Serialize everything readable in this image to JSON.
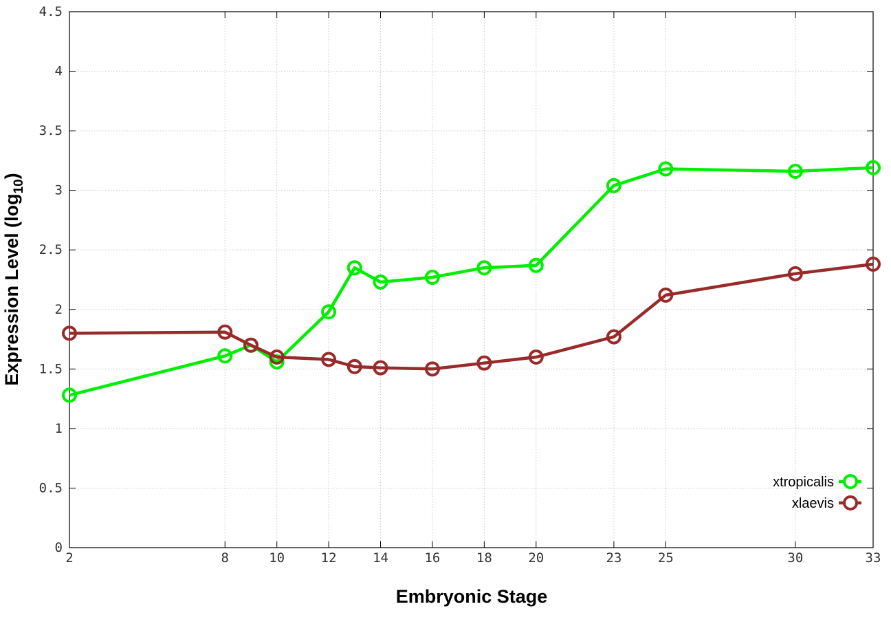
{
  "chart_data": {
    "type": "line",
    "xlabel": "Embryonic Stage",
    "ylabel": "Expression Level (log",
    "ylabel_sub": "10",
    "ylabel_close": ")",
    "x_ticks": [
      2,
      8,
      10,
      12,
      14,
      16,
      18,
      20,
      23,
      25,
      30,
      33
    ],
    "y_ticks": [
      0,
      0.5,
      1,
      1.5,
      2,
      2.5,
      3,
      3.5,
      4,
      4.5
    ],
    "y_tick_labels": [
      "0",
      "0.5",
      "1",
      "1.5",
      "2",
      "2.5",
      "3",
      "3.5",
      "4",
      "4.5"
    ],
    "xlim": [
      2,
      33
    ],
    "ylim": [
      0,
      4.5
    ],
    "grid": true,
    "legend_position": "bottom-right",
    "series": [
      {
        "name": "xtropicalis",
        "color": "#00ee00",
        "x": [
          2,
          8,
          9,
          10,
          12,
          13,
          14,
          16,
          18,
          20,
          23,
          25,
          30,
          33
        ],
        "y": [
          1.28,
          1.61,
          1.7,
          1.56,
          1.98,
          2.35,
          2.23,
          2.27,
          2.35,
          2.37,
          3.04,
          3.18,
          3.16,
          3.19
        ]
      },
      {
        "name": "xlaevis",
        "color": "#992a2a",
        "x": [
          2,
          8,
          9,
          10,
          12,
          13,
          14,
          16,
          18,
          20,
          23,
          25,
          30,
          33
        ],
        "y": [
          1.8,
          1.81,
          1.7,
          1.6,
          1.58,
          1.52,
          1.51,
          1.5,
          1.55,
          1.6,
          1.77,
          2.12,
          2.3,
          2.38
        ]
      }
    ]
  }
}
